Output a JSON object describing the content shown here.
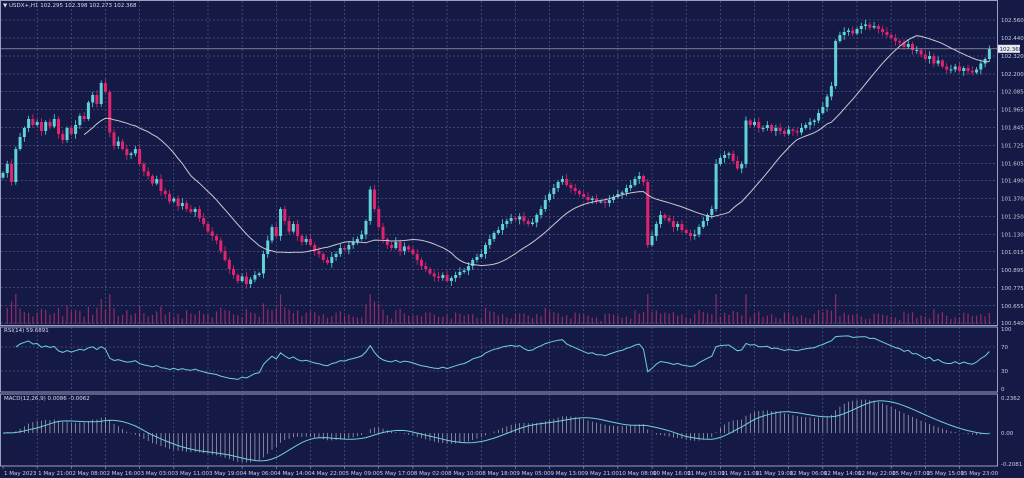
{
  "header": {
    "symbol": "USDX+,H1",
    "ohlc": "102.295 102.398 102.273 102.368"
  },
  "rsi": {
    "label": "RSI(14) 59.6891",
    "levels": [
      "100",
      "70",
      "30",
      "0"
    ]
  },
  "macd": {
    "label": "MACD(12,26,9) 0.0086 -0.0062",
    "levels": [
      "0.2362",
      "0.00",
      "-0.2081"
    ]
  },
  "colors": {
    "background": "#141a45",
    "bull": "#5fd3d8",
    "bear": "#e0246e",
    "ma": "#c8c8d0",
    "grid": "#6a6f9a",
    "volume": "#b0306e",
    "signal": "#6fd0d8"
  },
  "chart_data": {
    "type": "candlestick",
    "timeframe": "H1",
    "current_price": "102.368",
    "price_ticks": [
      "102.560",
      "102.440",
      "102.320",
      "102.200",
      "102.085",
      "101.965",
      "101.845",
      "101.725",
      "101.605",
      "101.490",
      "101.370",
      "101.250",
      "101.130",
      "101.015",
      "100.895",
      "100.775",
      "100.655",
      "100.540"
    ],
    "ylim": [
      100.54,
      102.56
    ],
    "time_labels": [
      "1 May 2023",
      "1 May 21:00",
      "2 May 08:00",
      "2 May 16:00",
      "3 May 03:00",
      "3 May 11:00",
      "3 May 19:00",
      "4 May 06:00",
      "4 May 14:00",
      "4 May 22:00",
      "5 May 09:00",
      "5 May 17:00",
      "8 May 02:00",
      "8 May 10:00",
      "8 May 18:00",
      "9 May 05:00",
      "9 May 13:00",
      "9 May 21:00",
      "10 May 08:00",
      "10 May 16:00",
      "11 May 03:00",
      "11 May 11:00",
      "11 May 19:00",
      "12 May 06:00",
      "12 May 14:00",
      "12 May 22:00",
      "15 May 07:00",
      "15 May 15:00",
      "15 May 23:00"
    ],
    "closes": [
      101.54,
      101.6,
      101.48,
      101.7,
      101.78,
      101.84,
      101.9,
      101.86,
      101.88,
      101.82,
      101.88,
      101.85,
      101.9,
      101.8,
      101.76,
      101.84,
      101.8,
      101.86,
      101.92,
      101.9,
      102.01,
      102.06,
      102.0,
      102.14,
      102.08,
      101.81,
      101.72,
      101.75,
      101.7,
      101.66,
      101.67,
      101.7,
      101.6,
      101.55,
      101.52,
      101.47,
      101.5,
      101.42,
      101.4,
      101.35,
      101.37,
      101.32,
      101.34,
      101.3,
      101.28,
      101.3,
      101.24,
      101.2,
      101.15,
      101.12,
      101.09,
      101.02,
      100.96,
      100.9,
      100.86,
      100.82,
      100.85,
      100.8,
      100.83,
      100.86,
      100.87,
      101.0,
      101.09,
      101.18,
      101.12,
      101.3,
      101.22,
      101.15,
      101.2,
      101.12,
      101.08,
      101.1,
      101.06,
      101.02,
      101.0,
      100.96,
      100.94,
      100.98,
      101.0,
      101.04,
      101.03,
      101.06,
      101.08,
      101.1,
      101.13,
      101.22,
      101.43,
      101.3,
      101.18,
      101.1,
      101.06,
      101.04,
      101.08,
      101.02,
      101.05,
      101.03,
      101.0,
      100.96,
      100.92,
      100.9,
      100.87,
      100.85,
      100.84,
      100.86,
      100.82,
      100.84,
      100.86,
      100.88,
      100.89,
      100.92,
      100.96,
      100.98,
      101.0,
      101.06,
      101.1,
      101.14,
      101.16,
      101.2,
      101.22,
      101.24,
      101.23,
      101.25,
      101.22,
      101.2,
      101.21,
      101.26,
      101.3,
      101.36,
      101.4,
      101.44,
      101.48,
      101.5,
      101.46,
      101.44,
      101.42,
      101.4,
      101.38,
      101.36,
      101.37,
      101.35,
      101.35,
      101.34,
      101.36,
      101.38,
      101.4,
      101.41,
      101.44,
      101.46,
      101.5,
      101.52,
      101.48,
      101.06,
      101.12,
      101.2,
      101.26,
      101.24,
      101.22,
      101.18,
      101.2,
      101.16,
      101.14,
      101.12,
      101.13,
      101.18,
      101.22,
      101.26,
      101.3,
      101.6,
      101.64,
      101.66,
      101.67,
      101.62,
      101.57,
      101.6,
      101.89,
      101.86,
      101.88,
      101.84,
      101.84,
      101.86,
      101.82,
      101.84,
      101.82,
      101.8,
      101.83,
      101.82,
      101.81,
      101.84,
      101.86,
      101.88,
      101.89,
      101.94,
      101.98,
      102.05,
      102.12,
      102.42,
      102.46,
      102.48,
      102.49,
      102.47,
      102.5,
      102.52,
      102.53,
      102.51,
      102.52,
      102.5,
      102.48,
      102.46,
      102.44,
      102.42,
      102.41,
      102.38,
      102.4,
      102.36,
      102.36,
      102.33,
      102.3,
      102.32,
      102.27,
      102.29,
      102.25,
      102.23,
      102.23,
      102.25,
      102.22,
      102.24,
      102.22,
      102.21,
      102.23,
      102.27,
      102.3,
      102.368
    ],
    "indicators": [
      "Moving Average",
      "Volumes",
      "RSI(14)",
      "MACD(12,26,9)"
    ]
  }
}
